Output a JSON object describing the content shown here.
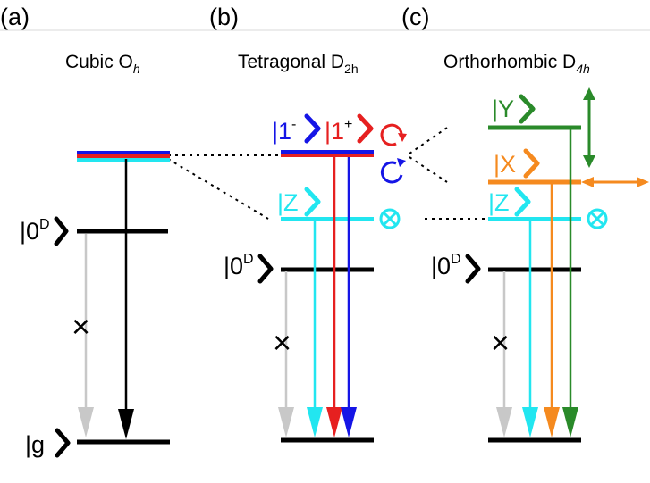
{
  "panels": {
    "a": {
      "letter": "(a)",
      "title": "Cubic O",
      "title_sub": "h",
      "ket_0D_base": "|0",
      "ket_0D_sup": "D",
      "ket_g": "|g",
      "forbidden_mark": "×"
    },
    "b": {
      "letter": "(b)",
      "title": "Tetragonal D",
      "title_sub": "2h",
      "ket_1m_base": "|1",
      "ket_1m_sup": "-",
      "ket_1p_base": "|1",
      "ket_1p_sup": "+",
      "ket_z": "|Z",
      "ket_0D_base": "|0",
      "ket_0D_sup": "D",
      "forbidden_mark": "×"
    },
    "c": {
      "letter": "(c)",
      "title": "Orthorhombic D",
      "title_sub": "4h",
      "ket_y": "|Y",
      "ket_x": "|X",
      "ket_z": "|Z",
      "ket_0D_base": "|0",
      "ket_0D_sup": "D",
      "forbidden_mark": "×"
    }
  },
  "colors": {
    "black": "#000000",
    "gray": "#c8c8c8",
    "blue": "#1515e6",
    "red": "#e62020",
    "cyan": "#22e6f0",
    "orange": "#f58a1f",
    "green": "#2a8a2a"
  }
}
